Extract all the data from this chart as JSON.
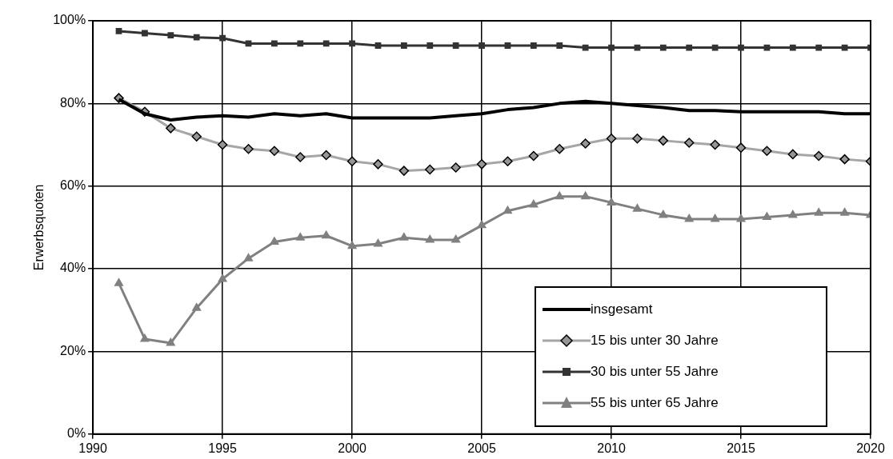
{
  "chart_data": {
    "type": "line",
    "ylabel": "Erwerbsquoten",
    "x": [
      1991,
      1992,
      1993,
      1994,
      1995,
      1996,
      1997,
      1998,
      1999,
      2000,
      2001,
      2002,
      2003,
      2004,
      2005,
      2006,
      2007,
      2008,
      2009,
      2010,
      2011,
      2012,
      2013,
      2014,
      2015,
      2016,
      2017,
      2018,
      2019,
      2020
    ],
    "xlim": [
      1990,
      2020
    ],
    "xticks": [
      1990,
      1995,
      2000,
      2005,
      2010,
      2015,
      2020
    ],
    "ylim": [
      0,
      100
    ],
    "yticks": [
      {
        "value": 0,
        "label": "0%"
      },
      {
        "value": 20,
        "label": "20%"
      },
      {
        "value": 40,
        "label": "40%"
      },
      {
        "value": 60,
        "label": "60%"
      },
      {
        "value": 80,
        "label": "80%"
      },
      {
        "value": 100,
        "label": "100%"
      }
    ],
    "grid": true,
    "legend": "bottom right",
    "series": [
      {
        "name": "insgesamt",
        "color": "#000000",
        "marker": "none",
        "values": [
          81,
          77.5,
          76,
          76.7,
          77,
          76.7,
          77.5,
          77,
          77.5,
          76.5,
          76.5,
          76.5,
          76.5,
          77,
          77.5,
          78.5,
          79,
          80,
          80.5,
          80,
          79.5,
          79,
          78.3,
          78.3,
          78,
          78,
          78,
          78,
          77.5,
          77.5
        ]
      },
      {
        "name": "15 bis unter 30 Jahre",
        "color": "#a6a6a6",
        "marker": "diamond",
        "values": [
          81.3,
          78,
          74,
          72,
          70,
          69,
          68.5,
          67,
          67.5,
          66,
          65.3,
          63.7,
          64,
          64.5,
          65.3,
          66,
          67.3,
          69,
          70.3,
          71.5,
          71.5,
          71,
          70.5,
          70,
          69.3,
          68.5,
          67.7,
          67.3,
          66.5,
          66
        ]
      },
      {
        "name": "30 bis unter 55 Jahre",
        "color": "#333333",
        "marker": "square",
        "values": [
          97.5,
          97,
          96.5,
          96,
          95.8,
          94.5,
          94.5,
          94.5,
          94.5,
          94.5,
          94,
          94,
          94,
          94,
          94,
          94,
          94,
          94,
          93.5,
          93.5,
          93.5,
          93.5,
          93.5,
          93.5,
          93.5,
          93.5,
          93.5,
          93.5,
          93.5,
          93.5
        ]
      },
      {
        "name": "55 bis unter 65 Jahre",
        "color": "#808080",
        "marker": "triangle",
        "values": [
          36.5,
          23,
          22,
          30.5,
          37.5,
          42.5,
          46.5,
          47.5,
          48,
          45.5,
          46,
          47.5,
          47,
          47,
          50.5,
          54,
          55.5,
          57.5,
          57.5,
          56,
          54.5,
          53,
          52,
          52,
          52,
          52.5,
          53,
          53.5,
          53.5,
          53
        ]
      }
    ]
  }
}
